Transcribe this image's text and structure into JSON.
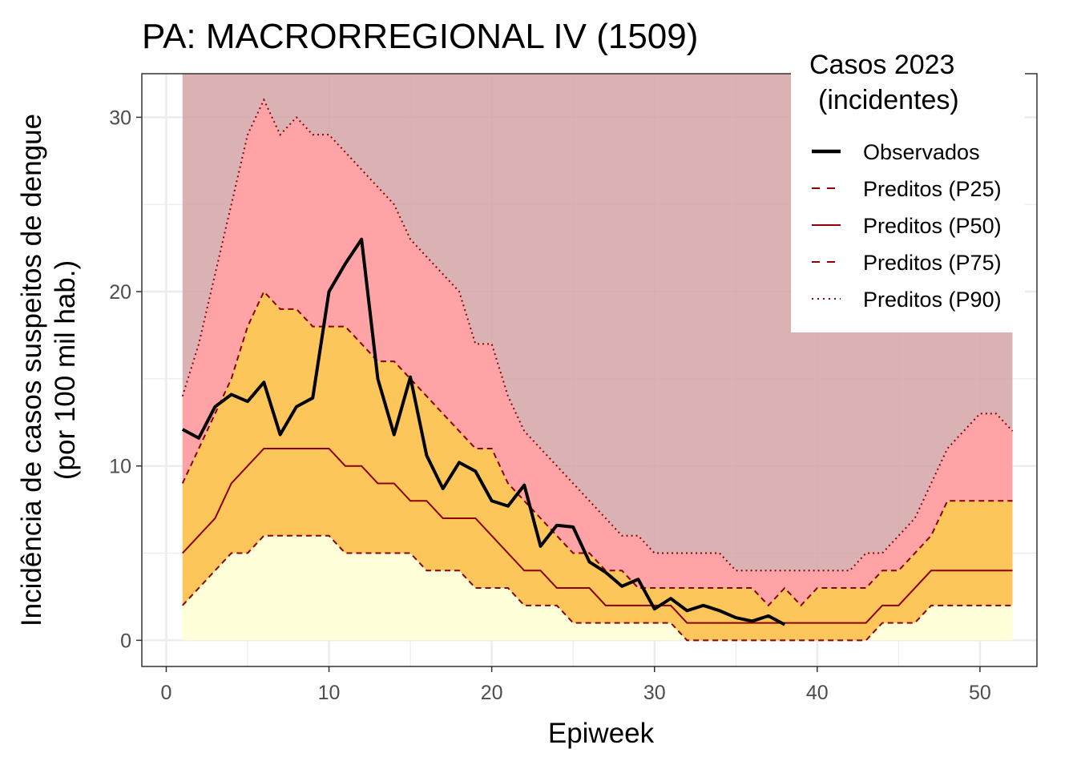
{
  "chart_data": {
    "type": "area",
    "title": "PA: MACRORREGIONAL IV (1509)",
    "xlabel": "Epiweek",
    "ylabel_line1": "Incidência de casos suspeitos de dengue",
    "ylabel_line2": "(por 100 mil hab.)",
    "xlim": [
      -1.5,
      53.5
    ],
    "ylim": [
      -1.5,
      32.5
    ],
    "x_ticks": [
      0,
      10,
      20,
      30,
      40,
      50
    ],
    "y_ticks": [
      0,
      10,
      20,
      30
    ],
    "grid": true,
    "legend": {
      "position": "top-right",
      "title_line1": "Casos 2023",
      "title_line2": "(incidentes)",
      "entries": [
        {
          "label": "Observados",
          "style": "solid-thick",
          "color": "#000000"
        },
        {
          "label": "Preditos (P25)",
          "style": "dashed",
          "color": "#8b0000"
        },
        {
          "label": "Preditos (P50)",
          "style": "solid",
          "color": "#8b0000"
        },
        {
          "label": "Preditos (P75)",
          "style": "dashed",
          "color": "#8b0000"
        },
        {
          "label": "Preditos (P90)",
          "style": "dotted",
          "color": "#8b0000"
        }
      ]
    },
    "band_colors": {
      "below_p25": "#ffffd9",
      "p25_p75": "#fdc65a",
      "p75_p90": "#ffa3a6",
      "above_p90": "#d5a5a7",
      "quantile_lines": "#8b0000",
      "observed": "#000000"
    },
    "x": [
      1,
      2,
      3,
      4,
      5,
      6,
      7,
      8,
      9,
      10,
      11,
      12,
      13,
      14,
      15,
      16,
      17,
      18,
      19,
      20,
      21,
      22,
      23,
      24,
      25,
      26,
      27,
      28,
      29,
      30,
      31,
      32,
      33,
      34,
      35,
      36,
      37,
      38,
      39,
      40,
      41,
      42,
      43,
      44,
      45,
      46,
      47,
      48,
      49,
      50,
      51,
      52
    ],
    "series": [
      {
        "name": "Preditos (P25)",
        "values": [
          2,
          3,
          4,
          5,
          5,
          6,
          6,
          6,
          6,
          6,
          5,
          5,
          5,
          5,
          5,
          4,
          4,
          4,
          3,
          3,
          3,
          2,
          2,
          2,
          1,
          1,
          1,
          1,
          1,
          1,
          1,
          0,
          0,
          0,
          0,
          0,
          0,
          0,
          0,
          0,
          0,
          0,
          0,
          1,
          1,
          1,
          2,
          2,
          2,
          2,
          2,
          2
        ]
      },
      {
        "name": "Preditos (P50)",
        "values": [
          5,
          6,
          7,
          9,
          10,
          11,
          11,
          11,
          11,
          11,
          10,
          10,
          9,
          9,
          8,
          8,
          7,
          7,
          7,
          6,
          5,
          4,
          4,
          3,
          3,
          3,
          2,
          2,
          2,
          2,
          2,
          1,
          1,
          1,
          1,
          1,
          1,
          1,
          1,
          1,
          1,
          1,
          1,
          2,
          2,
          3,
          4,
          4,
          4,
          4,
          4,
          4
        ]
      },
      {
        "name": "Preditos (P75)",
        "values": [
          9,
          11,
          13,
          15,
          18,
          20,
          19,
          19,
          18,
          18,
          18,
          17,
          16,
          16,
          15,
          14,
          13,
          12,
          11,
          11,
          9,
          8,
          7,
          6,
          5,
          5,
          4,
          4,
          3,
          3,
          3,
          3,
          3,
          3,
          3,
          3,
          2,
          3,
          2,
          3,
          3,
          3,
          3,
          4,
          4,
          5,
          6,
          8,
          8,
          8,
          8,
          8
        ]
      },
      {
        "name": "Preditos (P90)",
        "values": [
          14,
          17,
          21,
          25,
          29,
          31,
          29,
          30,
          29,
          29,
          28,
          27,
          26,
          25,
          23,
          22,
          21,
          20,
          17,
          17,
          14,
          12,
          11,
          10,
          9,
          8,
          7,
          6,
          6,
          5,
          5,
          5,
          5,
          5,
          4,
          4,
          4,
          4,
          4,
          4,
          4,
          4,
          5,
          5,
          6,
          7,
          9,
          11,
          12,
          13,
          13,
          12
        ]
      },
      {
        "name": "Observados",
        "x": [
          1,
          2,
          3,
          4,
          5,
          6,
          7,
          8,
          9,
          10,
          11,
          12,
          13,
          14,
          15,
          16,
          17,
          18,
          19,
          20,
          21,
          22,
          23,
          24,
          25,
          26,
          27,
          28,
          29,
          30,
          31,
          32,
          33,
          34,
          35,
          36,
          37,
          38
        ],
        "values": [
          12.1,
          11.6,
          13.4,
          14.1,
          13.7,
          14.8,
          11.8,
          13.4,
          13.9,
          20,
          21.6,
          23,
          15,
          11.8,
          15.1,
          10.6,
          8.7,
          10.2,
          9.7,
          8,
          7.7,
          8.9,
          5.4,
          6.6,
          6.5,
          4.5,
          3.9,
          3.1,
          3.5,
          1.8,
          2.4,
          1.7,
          2,
          1.7,
          1.3,
          1.1,
          1.4,
          0.9
        ]
      }
    ]
  }
}
